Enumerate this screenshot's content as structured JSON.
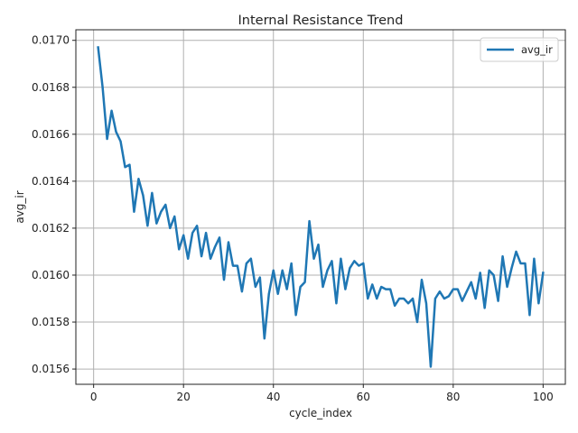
{
  "chart_data": {
    "type": "line",
    "title": "Internal Resistance Trend",
    "xlabel": "cycle_index",
    "ylabel": "avg_ir",
    "xlim": [
      -3.95,
      104.95
    ],
    "ylim": [
      0.015535,
      0.017045
    ],
    "xticks": [
      0,
      20,
      40,
      60,
      80,
      100
    ],
    "yticks": [
      0.0156,
      0.0158,
      0.016,
      0.0162,
      0.0164,
      0.0166,
      0.0168,
      0.017
    ],
    "ytick_labels": [
      "0.0156",
      "0.0158",
      "0.0160",
      "0.0162",
      "0.0164",
      "0.0166",
      "0.0168",
      "0.0170"
    ],
    "grid": true,
    "legend_position": "top-right",
    "color": "#1f77b4",
    "series": [
      {
        "name": "avg_ir",
        "x": [
          1,
          2,
          3,
          4,
          5,
          6,
          7,
          8,
          9,
          10,
          11,
          12,
          13,
          14,
          15,
          16,
          17,
          18,
          19,
          20,
          21,
          22,
          23,
          24,
          25,
          26,
          27,
          28,
          29,
          30,
          31,
          32,
          33,
          34,
          35,
          36,
          37,
          38,
          39,
          40,
          41,
          42,
          43,
          44,
          45,
          46,
          47,
          48,
          49,
          50,
          51,
          52,
          53,
          54,
          55,
          56,
          57,
          58,
          59,
          60,
          61,
          62,
          63,
          64,
          65,
          66,
          67,
          68,
          69,
          70,
          71,
          72,
          73,
          74,
          75,
          76,
          77,
          78,
          79,
          80,
          81,
          82,
          83,
          84,
          85,
          86,
          87,
          88,
          89,
          90,
          91,
          92,
          93,
          94,
          95,
          96,
          97,
          98,
          99,
          100
        ],
        "y": [
          0.01697,
          0.0168,
          0.01658,
          0.0167,
          0.01661,
          0.01657,
          0.01646,
          0.01647,
          0.01627,
          0.01641,
          0.01634,
          0.01621,
          0.01635,
          0.01622,
          0.01627,
          0.0163,
          0.0162,
          0.01625,
          0.01611,
          0.01617,
          0.01607,
          0.01618,
          0.01621,
          0.01608,
          0.01618,
          0.01607,
          0.01612,
          0.01616,
          0.01598,
          0.01614,
          0.01604,
          0.01604,
          0.01593,
          0.01605,
          0.01607,
          0.01595,
          0.01599,
          0.01573,
          0.01592,
          0.01602,
          0.01592,
          0.01602,
          0.01594,
          0.01605,
          0.01583,
          0.01595,
          0.01597,
          0.01623,
          0.01607,
          0.01613,
          0.01595,
          0.01602,
          0.01606,
          0.01588,
          0.01607,
          0.01594,
          0.01603,
          0.01606,
          0.01604,
          0.01605,
          0.0159,
          0.01596,
          0.0159,
          0.01595,
          0.01594,
          0.01594,
          0.01587,
          0.0159,
          0.0159,
          0.01588,
          0.0159,
          0.0158,
          0.01598,
          0.01588,
          0.01561,
          0.0159,
          0.01593,
          0.0159,
          0.01591,
          0.01594,
          0.01594,
          0.01589,
          0.01593,
          0.01597,
          0.0159,
          0.01601,
          0.01586,
          0.01602,
          0.016,
          0.01589,
          0.01608,
          0.01595,
          0.01603,
          0.0161,
          0.01605,
          0.01605,
          0.01583,
          0.01607,
          0.01588,
          0.01601
        ]
      }
    ]
  }
}
